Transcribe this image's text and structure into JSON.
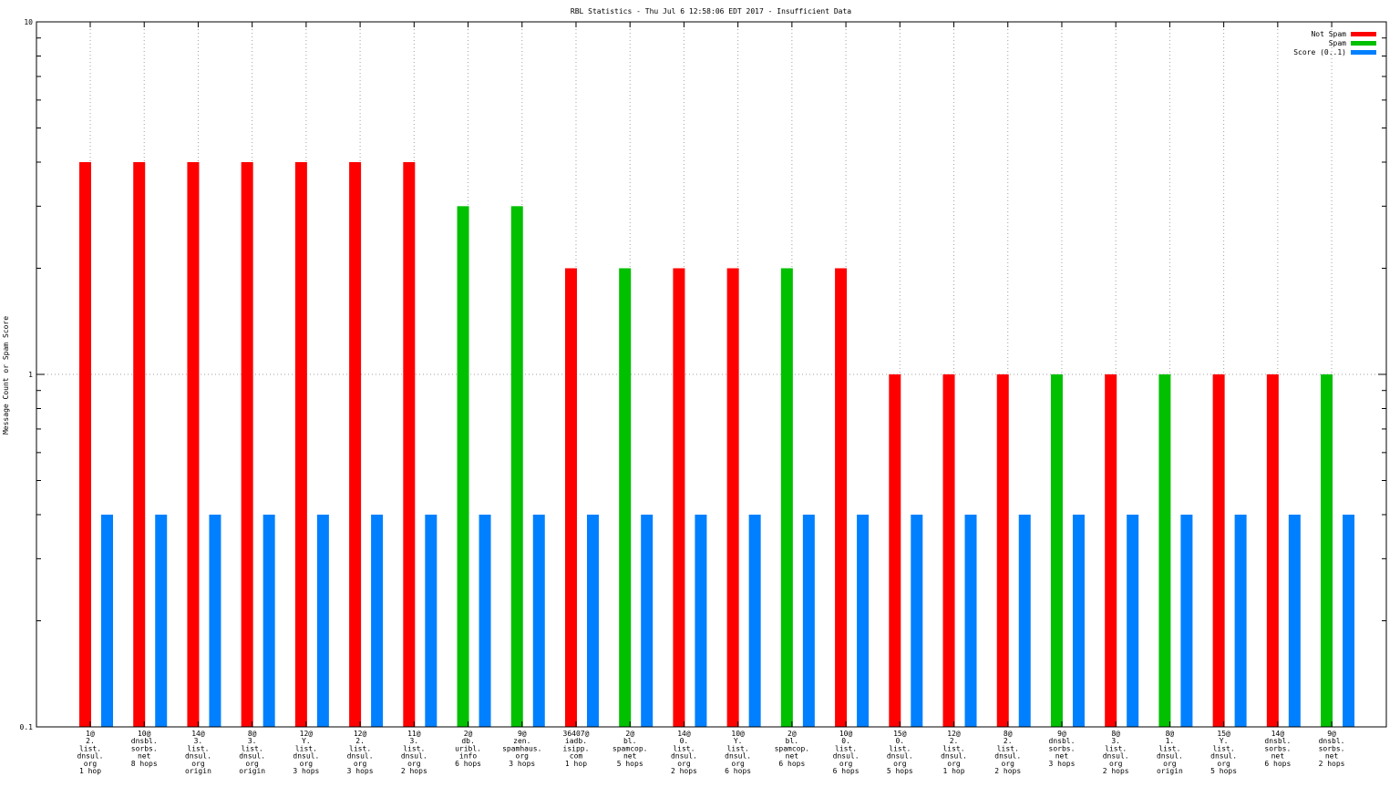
{
  "chart_data": {
    "type": "bar",
    "title": "RBL Statistics - Thu Jul  6 12:58:06 EDT 2017 - Insufficient Data",
    "xlabel": "",
    "ylabel": "Message Count or Spam Score",
    "yscale": "log",
    "ylim": [
      0.1,
      10
    ],
    "yticks": [
      {
        "value": 0.1,
        "label": "0.1"
      },
      {
        "value": 1,
        "label": "1"
      },
      {
        "value": 10,
        "label": "10"
      }
    ],
    "grid": true,
    "legend_position": "top-right",
    "categories": [
      [
        "1@",
        "2.",
        "list.",
        "dnsul.",
        "org",
        "1 hop"
      ],
      [
        "10@",
        "dnsbl.",
        "sorbs.",
        "net",
        "8 hops"
      ],
      [
        "14@",
        "3.",
        "list.",
        "dnsul.",
        "org",
        "origin"
      ],
      [
        "8@",
        "3.",
        "list.",
        "dnsul.",
        "org",
        "origin"
      ],
      [
        "12@",
        "Y.",
        "list.",
        "dnsul.",
        "org",
        "3 hops"
      ],
      [
        "12@",
        "2.",
        "list.",
        "dnsul.",
        "org",
        "3 hops"
      ],
      [
        "11@",
        "3.",
        "list.",
        "dnsul.",
        "org",
        "2 hops"
      ],
      [
        "2@",
        "db.",
        "uribl.",
        "info",
        "6 hops"
      ],
      [
        "9@",
        "zen.",
        "spamhaus.",
        "org",
        "3 hops"
      ],
      [
        "36407@",
        "iadb.",
        "isipp.",
        "com",
        "1 hop"
      ],
      [
        "2@",
        "bl.",
        "spamcop.",
        "net",
        "5 hops"
      ],
      [
        "14@",
        "0.",
        "list.",
        "dnsul.",
        "org",
        "2 hops"
      ],
      [
        "10@",
        "Y.",
        "list.",
        "dnsul.",
        "org",
        "6 hops"
      ],
      [
        "2@",
        "bl.",
        "spamcop.",
        "net",
        "6 hops"
      ],
      [
        "10@",
        "0.",
        "list.",
        "dnsul.",
        "org",
        "6 hops"
      ],
      [
        "15@",
        "0.",
        "list.",
        "dnsul.",
        "org",
        "5 hops"
      ],
      [
        "12@",
        "2.",
        "list.",
        "dnsul.",
        "org",
        "1 hop"
      ],
      [
        "8@",
        "2.",
        "list.",
        "dnsul.",
        "org",
        "2 hops"
      ],
      [
        "9@",
        "dnsbl.",
        "sorbs.",
        "net",
        "3 hops"
      ],
      [
        "8@",
        "3.",
        "list.",
        "dnsul.",
        "org",
        "2 hops"
      ],
      [
        "8@",
        "1.",
        "list.",
        "dnsul.",
        "org",
        "origin"
      ],
      [
        "15@",
        "Y.",
        "list.",
        "dnsul.",
        "org",
        "5 hops"
      ],
      [
        "14@",
        "dnsbl.",
        "sorbs.",
        "net",
        "6 hops"
      ],
      [
        "9@",
        "dnsbl.",
        "sorbs.",
        "net",
        "2 hops"
      ]
    ],
    "series": [
      {
        "name": "Not Spam",
        "color": "#ff0000",
        "values": [
          4,
          4,
          4,
          4,
          4,
          4,
          4,
          null,
          null,
          2,
          null,
          2,
          2,
          null,
          2,
          1,
          1,
          1,
          null,
          1,
          null,
          1,
          1,
          null
        ]
      },
      {
        "name": "Spam",
        "color": "#00c000",
        "values": [
          null,
          null,
          null,
          null,
          null,
          null,
          null,
          3,
          3,
          null,
          2,
          null,
          null,
          2,
          null,
          null,
          null,
          null,
          1,
          null,
          1,
          null,
          null,
          1
        ]
      },
      {
        "name": "Score (0..1)",
        "color": "#0080ff",
        "values": [
          0.4,
          0.4,
          0.4,
          0.4,
          0.4,
          0.4,
          0.4,
          0.4,
          0.4,
          0.4,
          0.4,
          0.4,
          0.4,
          0.4,
          0.4,
          0.4,
          0.4,
          0.4,
          0.4,
          0.4,
          0.4,
          0.4,
          0.4,
          0.4
        ]
      }
    ]
  }
}
